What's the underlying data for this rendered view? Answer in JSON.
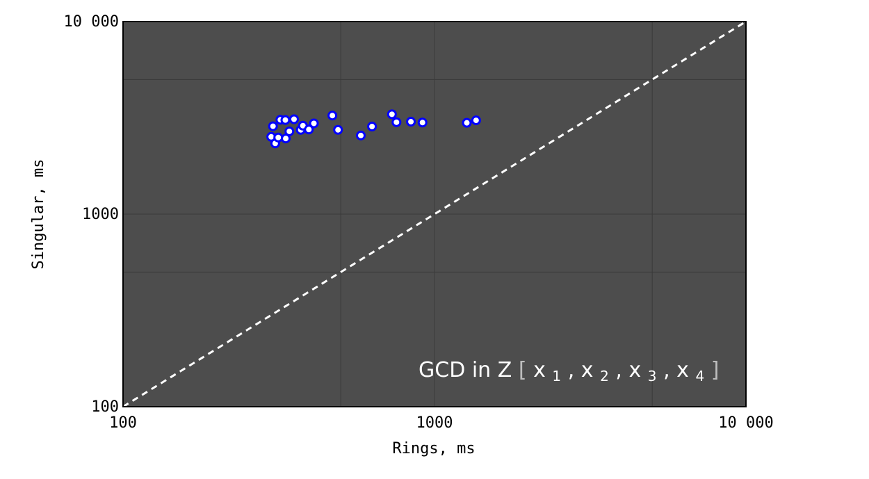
{
  "chart_data": {
    "type": "scatter",
    "title": "",
    "xlabel": "Rings, ms",
    "ylabel": "Singular, ms",
    "xscale": "log",
    "yscale": "log",
    "xlim": [
      100,
      10000
    ],
    "ylim": [
      100,
      10000
    ],
    "x_ticks": [
      {
        "value": 100,
        "label": "100"
      },
      {
        "value": 1000,
        "label": "1000"
      },
      {
        "value": 10000,
        "label": "10 000"
      }
    ],
    "y_ticks": [
      {
        "value": 100,
        "label": "100"
      },
      {
        "value": 1000,
        "label": "1000"
      },
      {
        "value": 10000,
        "label": "10 000"
      }
    ],
    "grid": true,
    "background_color": "#4d4d4d",
    "point_fill": "#ffffff",
    "point_edge": "#0000ff",
    "reference_line": {
      "from": [
        100,
        100
      ],
      "to": [
        10000,
        10000
      ],
      "style": "dashed",
      "color": "#ffffff"
    },
    "points": [
      {
        "x": 299,
        "y": 2520
      },
      {
        "x": 303,
        "y": 2860
      },
      {
        "x": 308,
        "y": 2330
      },
      {
        "x": 315,
        "y": 2500
      },
      {
        "x": 320,
        "y": 3090
      },
      {
        "x": 332,
        "y": 3080
      },
      {
        "x": 333,
        "y": 2470
      },
      {
        "x": 342,
        "y": 2690
      },
      {
        "x": 354,
        "y": 3110
      },
      {
        "x": 372,
        "y": 2740
      },
      {
        "x": 378,
        "y": 2880
      },
      {
        "x": 395,
        "y": 2750
      },
      {
        "x": 410,
        "y": 2960
      },
      {
        "x": 470,
        "y": 3250
      },
      {
        "x": 490,
        "y": 2740
      },
      {
        "x": 580,
        "y": 2560
      },
      {
        "x": 630,
        "y": 2850
      },
      {
        "x": 730,
        "y": 3300
      },
      {
        "x": 755,
        "y": 3000
      },
      {
        "x": 840,
        "y": 3020
      },
      {
        "x": 915,
        "y": 2990
      },
      {
        "x": 1270,
        "y": 2980
      },
      {
        "x": 1360,
        "y": 3070
      }
    ],
    "annotation": {
      "prefix": "GCD in Z",
      "open_bracket": "[",
      "close_bracket": "]",
      "comma": ",",
      "vars": [
        {
          "base": "x",
          "sub": "1"
        },
        {
          "base": "x",
          "sub": "2"
        },
        {
          "base": "x",
          "sub": "3"
        },
        {
          "base": "x",
          "sub": "4"
        }
      ]
    }
  }
}
